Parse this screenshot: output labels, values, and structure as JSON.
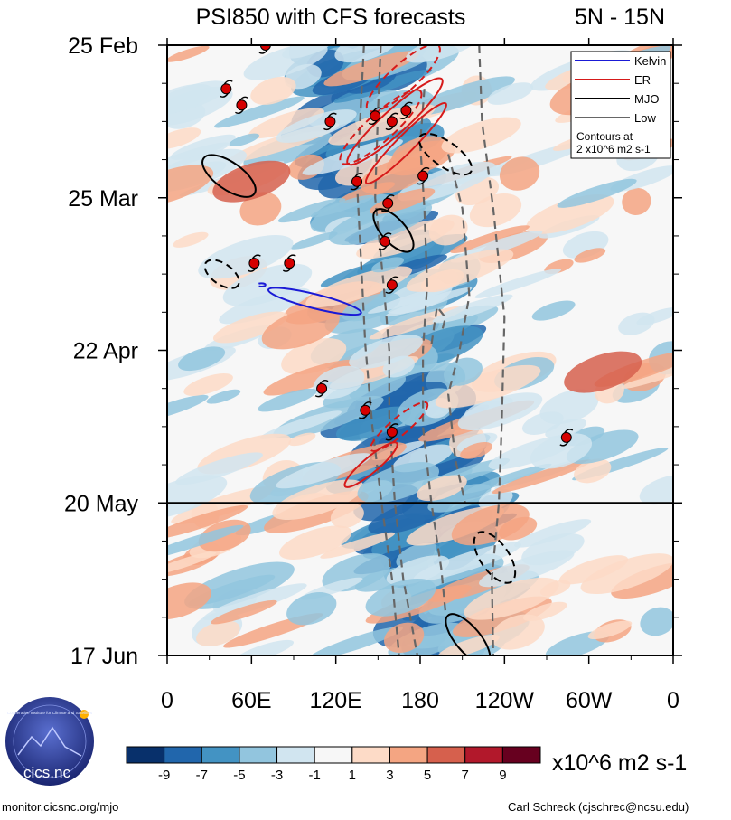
{
  "chart_data": {
    "type": "heatmap",
    "title": "PSI850 with CFS forecasts",
    "region": "5N - 15N",
    "x_tick_labels": [
      "0",
      "60E",
      "120E",
      "180",
      "120W",
      "60W",
      "0"
    ],
    "x_tick_values_deg": [
      0,
      60,
      120,
      180,
      240,
      300,
      360
    ],
    "y_tick_labels": [
      "25 Feb",
      "25 Mar",
      "22 Apr",
      "20 May",
      "17 Jun"
    ],
    "y_tick_values_day": [
      0,
      28,
      56,
      84,
      112
    ],
    "ylim_day": [
      0,
      112
    ],
    "forecast_start_day": 84,
    "legend": {
      "entries": [
        {
          "label": "Kelvin",
          "color": "#1a1ad6",
          "style": "solid"
        },
        {
          "label": "ER",
          "color": "#d61a1a",
          "style": "solid"
        },
        {
          "label": "MJO",
          "color": "#000000",
          "style": "solid"
        },
        {
          "label": "Low",
          "color": "#666666",
          "style": "solid"
        }
      ],
      "note_lines": [
        "Contours at",
        "2 x10^6 m2 s-1"
      ],
      "placement": "top-right"
    },
    "colorbar": {
      "tick_labels": [
        "-9",
        "-7",
        "-5",
        "-3",
        "-1",
        "1",
        "3",
        "5",
        "7",
        "9"
      ],
      "colors": [
        "#08306b",
        "#2166ac",
        "#4393c3",
        "#92c5de",
        "#d1e5f0",
        "#f7f7f7",
        "#fddbc7",
        "#f4a582",
        "#d6604d",
        "#b2182b",
        "#67001f"
      ],
      "units": "x10^6 m2 s-1"
    },
    "tropical_cyclones": [
      {
        "lon": 70,
        "day": 0
      },
      {
        "lon": 42,
        "day": 8
      },
      {
        "lon": 53,
        "day": 11
      },
      {
        "lon": 116,
        "day": 14
      },
      {
        "lon": 148,
        "day": 13
      },
      {
        "lon": 160,
        "day": 14
      },
      {
        "lon": 170,
        "day": 12
      },
      {
        "lon": 135,
        "day": 25
      },
      {
        "lon": 182,
        "day": 24
      },
      {
        "lon": 157,
        "day": 29
      },
      {
        "lon": 155,
        "day": 36
      },
      {
        "lon": 62,
        "day": 40
      },
      {
        "lon": 87,
        "day": 40
      },
      {
        "lon": 160,
        "day": 44
      },
      {
        "lon": 110,
        "day": 63
      },
      {
        "lon": 141,
        "day": 67
      },
      {
        "lon": 160,
        "day": 71
      },
      {
        "lon": 284,
        "day": 72
      }
    ],
    "wave_contours": [
      {
        "wave": "Kelvin",
        "sign": "positive",
        "center": {
          "lon": 105,
          "day": 47
        },
        "rx_deg": 34,
        "ry_day": 1.3,
        "tilt_deg": 14
      },
      {
        "wave": "Kelvin",
        "sign": "negative",
        "center": {
          "lon": 67,
          "day": 44
        },
        "rx_deg": 3,
        "ry_day": 0.3,
        "tilt_deg": 0
      },
      {
        "wave": "ER",
        "sign": "negative",
        "center": {
          "lon": 168,
          "day": 6
        },
        "rx_deg": 34,
        "ry_day": 2.5,
        "tilt_deg": -42
      },
      {
        "wave": "ER",
        "sign": "negative",
        "center": {
          "lon": 152,
          "day": 15
        },
        "rx_deg": 38,
        "ry_day": 2.5,
        "tilt_deg": -42
      },
      {
        "wave": "ER",
        "sign": "positive",
        "center": {
          "lon": 162,
          "day": 14
        },
        "rx_deg": 45,
        "ry_day": 2.2,
        "tilt_deg": -42
      },
      {
        "wave": "ER",
        "sign": "positive",
        "center": {
          "lon": 170,
          "day": 18
        },
        "rx_deg": 40,
        "ry_day": 1.6,
        "tilt_deg": -45
      },
      {
        "wave": "ER",
        "sign": "negative",
        "center": {
          "lon": 165,
          "day": 70
        },
        "rx_deg": 26,
        "ry_day": 1.6,
        "tilt_deg": -40
      },
      {
        "wave": "ER",
        "sign": "positive",
        "center": {
          "lon": 145,
          "day": 77
        },
        "rx_deg": 24,
        "ry_day": 1.4,
        "tilt_deg": -40
      },
      {
        "wave": "MJO",
        "sign": "positive",
        "center": {
          "lon": 44,
          "day": 24
        },
        "rx_deg": 22,
        "ry_day": 2.5,
        "tilt_deg": 35
      },
      {
        "wave": "MJO",
        "sign": "negative",
        "center": {
          "lon": 198,
          "day": 20
        },
        "rx_deg": 22,
        "ry_day": 2.3,
        "tilt_deg": 35
      },
      {
        "wave": "MJO",
        "sign": "positive",
        "center": {
          "lon": 161,
          "day": 34
        },
        "rx_deg": 19,
        "ry_day": 2.2,
        "tilt_deg": 48
      },
      {
        "wave": "MJO",
        "sign": "negative",
        "center": {
          "lon": 39,
          "day": 42
        },
        "rx_deg": 14,
        "ry_day": 1.9,
        "tilt_deg": 35
      },
      {
        "wave": "MJO",
        "sign": "negative",
        "center": {
          "lon": 233,
          "day": 94
        },
        "rx_deg": 21,
        "ry_day": 2.6,
        "tilt_deg": 55
      },
      {
        "wave": "MJO",
        "sign": "positive",
        "center": {
          "lon": 214,
          "day": 109
        },
        "rx_deg": 22,
        "ry_day": 2.3,
        "tilt_deg": 50
      }
    ],
    "low_frequency_contours": [
      {
        "sign": "negative",
        "path": [
          [
            140,
            0
          ],
          [
            138,
            10
          ],
          [
            135,
            25
          ],
          [
            138,
            40
          ],
          [
            141,
            55
          ],
          [
            146,
            70
          ],
          [
            153,
            85
          ],
          [
            160,
            98
          ],
          [
            165,
            112
          ]
        ]
      },
      {
        "sign": "negative",
        "path": [
          [
            152,
            0
          ],
          [
            150,
            12
          ],
          [
            148,
            28
          ],
          [
            154,
            44
          ],
          [
            158,
            56
          ],
          [
            158,
            68
          ],
          [
            162,
            84
          ],
          [
            168,
            98
          ],
          [
            178,
            112
          ]
        ]
      },
      {
        "sign": "negative",
        "path": [
          [
            183,
            8
          ],
          [
            180,
            18
          ],
          [
            183,
            30
          ],
          [
            185,
            44
          ],
          [
            182,
            56
          ],
          [
            182,
            70
          ],
          [
            188,
            84
          ],
          [
            195,
            96
          ],
          [
            198,
            104
          ]
        ]
      },
      {
        "sign": "negative",
        "path": [
          [
            200,
            20
          ],
          [
            210,
            30
          ],
          [
            215,
            46
          ],
          [
            208,
            56
          ],
          [
            200,
            64
          ],
          [
            205,
            76
          ],
          [
            212,
            84
          ]
        ]
      },
      {
        "sign": "negative",
        "path": [
          [
            222,
            0
          ],
          [
            224,
            14
          ],
          [
            232,
            30
          ],
          [
            240,
            50
          ],
          [
            238,
            70
          ],
          [
            236,
            84
          ],
          [
            231,
            98
          ],
          [
            232,
            112
          ]
        ]
      },
      {
        "sign": "negative",
        "path": [
          [
            196,
            52
          ],
          [
            198,
            50
          ],
          [
            192,
            48
          ],
          [
            188,
            55
          ]
        ]
      }
    ]
  },
  "footer": {
    "left_url": "monitor.cicsnc.org/mjo",
    "credit": "Carl Schreck (cjschrec@ncsu.edu)",
    "logo_text": "cics.nc",
    "logo_ring_text": "Cooperative Institute for Climate and Satellites"
  }
}
